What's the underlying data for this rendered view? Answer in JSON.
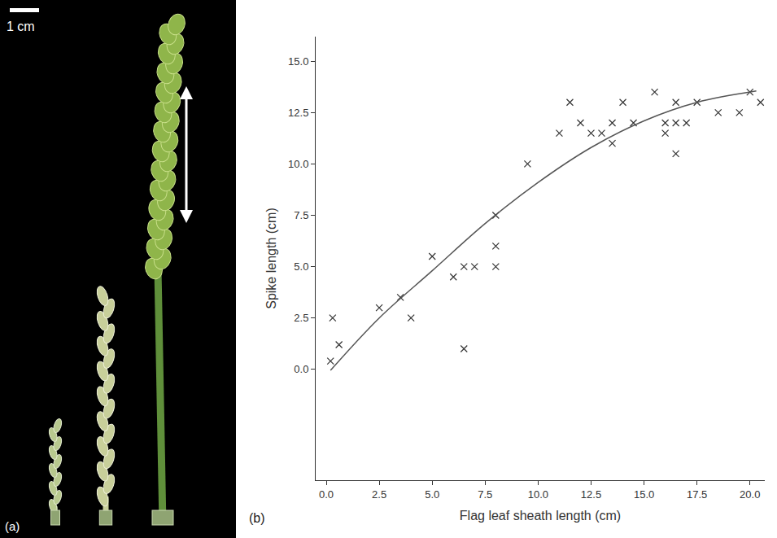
{
  "photo": {
    "scale_bar": "1 cm",
    "label": "(a)"
  },
  "chart_data": {
    "type": "scatter",
    "panel_label": "(b)",
    "x_label": "Flag leaf sheath length (cm)",
    "y_label": "Spike length (cm)",
    "xlim": [
      -0.5,
      20.7
    ],
    "ylim": [
      -5.4,
      16.2
    ],
    "xticks": [
      {
        "value": 0,
        "label": "0.0"
      },
      2.5,
      {
        "value": 5,
        "label": "5.0"
      },
      7.5,
      {
        "value": 10,
        "label": "10.0"
      },
      12.5,
      {
        "value": 15,
        "label": "15.0"
      },
      17.5,
      {
        "value": 20,
        "label": "20.0"
      }
    ],
    "yticks": [
      {
        "value": 0,
        "label": "0.0"
      },
      2.5,
      {
        "value": 5,
        "label": "5.0"
      },
      7.5,
      {
        "value": 10,
        "label": "10.0"
      },
      12.5,
      {
        "value": 15,
        "label": "15.0"
      }
    ],
    "grid": false,
    "series": [
      {
        "type": "scatter",
        "marker": "x",
        "color": "#333333",
        "x": [
          0.2,
          0.3,
          0.6,
          2.5,
          3.5,
          4.0,
          5.0,
          6.0,
          6.5,
          6.5,
          7.0,
          8.0,
          8.0,
          8.0,
          9.5,
          11.0,
          11.5,
          12.0,
          12.5,
          13.0,
          13.5,
          13.5,
          14.0,
          14.5,
          15.5,
          16.0,
          16.0,
          16.5,
          16.5,
          16.5,
          17.0,
          17.5,
          18.5,
          19.5,
          20.0,
          20.5
        ],
        "values": [
          0.4,
          2.5,
          1.2,
          3.0,
          3.5,
          2.5,
          5.5,
          4.5,
          5.0,
          1.0,
          5.0,
          7.5,
          6.0,
          5.0,
          10.0,
          11.5,
          13.0,
          12.0,
          11.5,
          11.5,
          12.0,
          11.0,
          13.0,
          12.0,
          13.5,
          12.0,
          11.5,
          13.0,
          10.5,
          12.0,
          12.0,
          13.0,
          12.5,
          12.5,
          13.5,
          13.0
        ]
      },
      {
        "type": "line",
        "color": "#555555",
        "x": [
          0.2,
          2.5,
          5.0,
          7.5,
          10.0,
          12.5,
          15.0,
          17.5,
          20.3
        ],
        "values": [
          -0.05,
          2.5,
          4.8,
          7.1,
          9.1,
          10.8,
          12.1,
          13.0,
          13.55
        ]
      }
    ]
  }
}
